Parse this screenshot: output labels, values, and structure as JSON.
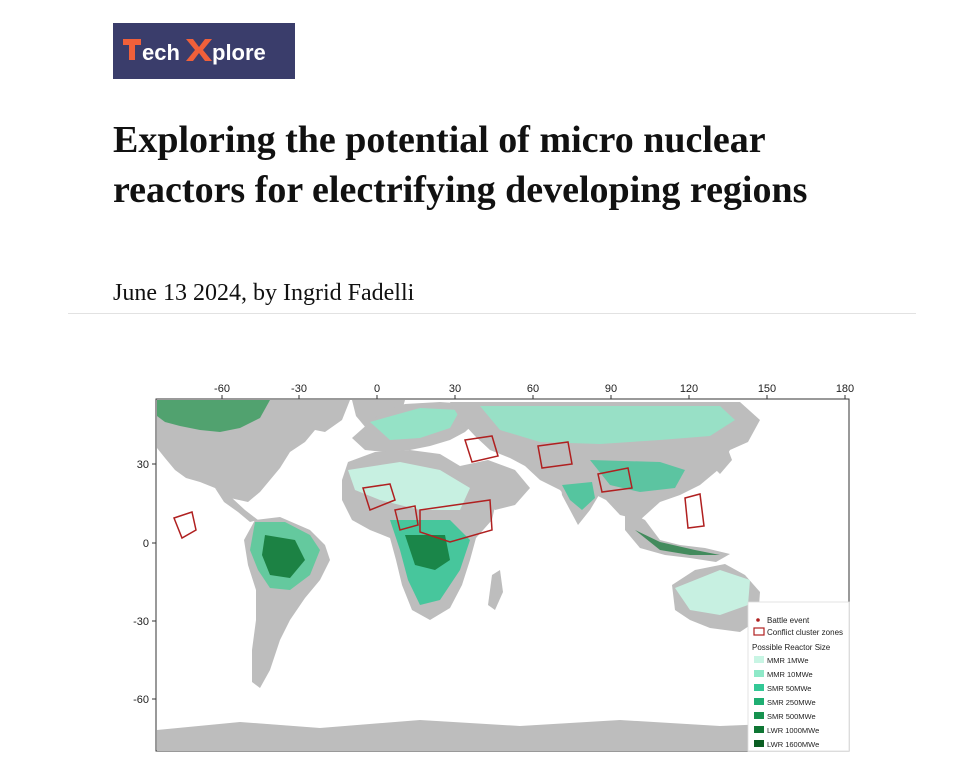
{
  "site": {
    "logo_text": "TechXplore",
    "logo_part1": "ech",
    "logo_part2": "plore"
  },
  "article": {
    "title": "Exploring the potential of micro nuclear reactors for electrifying developing regions",
    "byline": "June 13 2024, by Ingrid Fadelli"
  },
  "map": {
    "lon_ticks": [
      "-60",
      "-30",
      "0",
      "30",
      "60",
      "90",
      "120",
      "150",
      "180"
    ],
    "lat_ticks": [
      "30",
      "0",
      "-30",
      "-60"
    ],
    "legend": {
      "battle_event": "Battle event",
      "conflict_zones": "Conflict cluster zones",
      "size_title": "Possible Reactor Size",
      "sizes": [
        "MMR 1MWe",
        "MMR 10MWe",
        "SMR 50MWe",
        "SMR 250MWe",
        "SMR 500MWe",
        "LWR 1000MWe",
        "LWR 1600MWe"
      ],
      "size_colors": [
        "#c8f5e4",
        "#8ee9c8",
        "#33c896",
        "#1fae72",
        "#16924f",
        "#0f7634",
        "#0a5e22"
      ]
    },
    "colors": {
      "land": "#bdbdbd",
      "conflict": "#b02020"
    }
  }
}
